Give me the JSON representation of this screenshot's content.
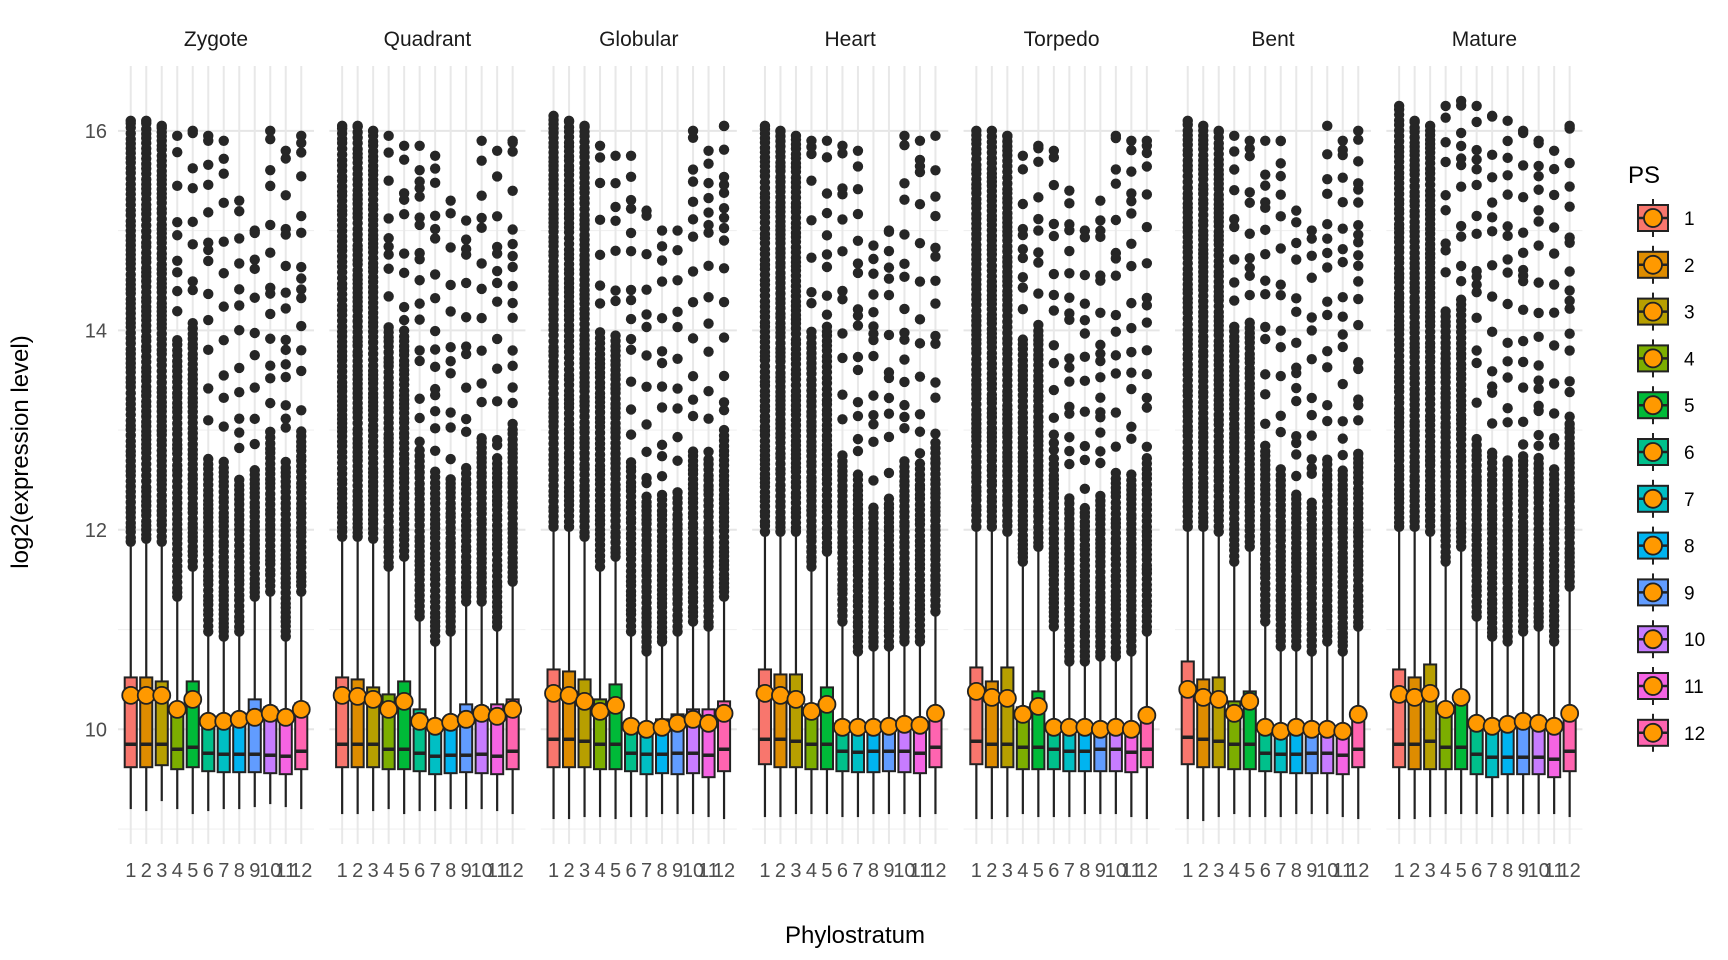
{
  "chart_data": {
    "type": "box",
    "xlabel": "Phylostratum",
    "ylabel": "log2(expression level)",
    "y_ticks": [
      10,
      12,
      14,
      16
    ],
    "ylim": [
      8.9,
      16.6
    ],
    "grid": true,
    "legend": {
      "title": "PS",
      "placement": "right"
    },
    "facets": [
      "Zygote",
      "Quadrant",
      "Globular",
      "Heart",
      "Torpedo",
      "Bent",
      "Mature"
    ],
    "categories": [
      "1",
      "2",
      "3",
      "4",
      "5",
      "6",
      "7",
      "8",
      "9",
      "10",
      "11",
      "12"
    ],
    "colors": [
      "#F8766D",
      "#DE8C00",
      "#B79F00",
      "#7CAE00",
      "#00BA38",
      "#00C08B",
      "#00BFC4",
      "#00B4F0",
      "#619CFF",
      "#C77CFF",
      "#F564E3",
      "#FF64B0"
    ],
    "mean_marker_color": "#FF9900",
    "series": [
      {
        "name": "Zygote",
        "q1": [
          9.62,
          9.62,
          9.64,
          9.6,
          9.62,
          9.58,
          9.57,
          9.57,
          9.57,
          9.56,
          9.55,
          9.6
        ],
        "median": [
          9.85,
          9.85,
          9.85,
          9.8,
          9.82,
          9.76,
          9.75,
          9.75,
          9.75,
          9.74,
          9.73,
          9.78
        ],
        "q3": [
          10.52,
          10.52,
          10.48,
          10.2,
          10.48,
          10.12,
          10.1,
          10.13,
          10.3,
          10.22,
          10.18,
          10.26
        ],
        "lower_whisker": [
          9.2,
          9.18,
          9.28,
          9.2,
          9.15,
          9.18,
          9.2,
          9.2,
          9.22,
          9.25,
          9.22,
          9.2
        ],
        "upper_whisker": [
          11.85,
          11.88,
          11.85,
          11.3,
          11.6,
          10.95,
          10.9,
          10.95,
          11.3,
          11.35,
          10.9,
          11.35
        ],
        "mean": [
          10.34,
          10.34,
          10.34,
          10.2,
          10.3,
          10.08,
          10.08,
          10.1,
          10.12,
          10.16,
          10.12,
          10.2
        ],
        "outlier_max": [
          16.1,
          16.1,
          16.05,
          15.95,
          16.0,
          15.95,
          15.9,
          15.3,
          15.0,
          16.0,
          15.8,
          15.95
        ]
      },
      {
        "name": "Quadrant",
        "q1": [
          9.62,
          9.62,
          9.62,
          9.6,
          9.6,
          9.58,
          9.55,
          9.56,
          9.57,
          9.56,
          9.55,
          9.6
        ],
        "median": [
          9.85,
          9.85,
          9.85,
          9.8,
          9.8,
          9.76,
          9.73,
          9.74,
          9.74,
          9.75,
          9.73,
          9.78
        ],
        "q3": [
          10.52,
          10.5,
          10.42,
          10.35,
          10.48,
          10.2,
          10.08,
          10.12,
          10.25,
          10.22,
          10.25,
          10.3
        ],
        "lower_whisker": [
          9.15,
          9.15,
          9.18,
          9.2,
          9.15,
          9.18,
          9.18,
          9.2,
          9.2,
          9.2,
          9.18,
          9.15
        ],
        "upper_whisker": [
          11.9,
          11.9,
          11.88,
          11.6,
          11.7,
          11.1,
          10.85,
          10.95,
          11.25,
          11.25,
          11.0,
          11.45
        ],
        "mean": [
          10.34,
          10.33,
          10.3,
          10.2,
          10.28,
          10.08,
          10.03,
          10.07,
          10.1,
          10.16,
          10.13,
          10.2
        ],
        "outlier_max": [
          16.05,
          16.05,
          16.0,
          15.95,
          15.85,
          15.85,
          15.75,
          15.3,
          15.1,
          15.9,
          15.8,
          15.9
        ]
      },
      {
        "name": "Globular",
        "q1": [
          9.62,
          9.62,
          9.62,
          9.6,
          9.6,
          9.58,
          9.55,
          9.56,
          9.55,
          9.56,
          9.52,
          9.58
        ],
        "median": [
          9.9,
          9.9,
          9.88,
          9.85,
          9.85,
          9.76,
          9.75,
          9.75,
          9.76,
          9.76,
          9.74,
          9.8
        ],
        "q3": [
          10.6,
          10.58,
          10.5,
          10.3,
          10.45,
          10.08,
          10.05,
          10.1,
          10.15,
          10.2,
          10.2,
          10.28
        ],
        "lower_whisker": [
          9.1,
          9.1,
          9.12,
          9.12,
          9.1,
          9.12,
          9.12,
          9.15,
          9.15,
          9.15,
          9.12,
          9.1
        ],
        "upper_whisker": [
          12.0,
          12.0,
          11.9,
          11.6,
          11.7,
          10.95,
          10.75,
          10.85,
          10.95,
          11.05,
          11.0,
          11.3
        ],
        "mean": [
          10.36,
          10.34,
          10.28,
          10.18,
          10.24,
          10.03,
          10.0,
          10.02,
          10.06,
          10.1,
          10.06,
          10.16
        ],
        "outlier_max": [
          16.15,
          16.1,
          16.05,
          15.85,
          15.75,
          15.75,
          15.2,
          15.0,
          15.0,
          16.0,
          15.8,
          16.05
        ]
      },
      {
        "name": "Heart",
        "q1": [
          9.65,
          9.62,
          9.62,
          9.6,
          9.6,
          9.58,
          9.57,
          9.57,
          9.58,
          9.57,
          9.56,
          9.62
        ],
        "median": [
          9.9,
          9.9,
          9.88,
          9.85,
          9.85,
          9.78,
          9.77,
          9.78,
          9.78,
          9.78,
          9.76,
          9.82
        ],
        "q3": [
          10.6,
          10.55,
          10.55,
          10.25,
          10.42,
          10.08,
          10.05,
          10.05,
          10.08,
          10.1,
          10.08,
          10.18
        ],
        "lower_whisker": [
          9.12,
          9.12,
          9.15,
          9.15,
          9.15,
          9.12,
          9.12,
          9.15,
          9.15,
          9.15,
          9.12,
          9.15
        ],
        "upper_whisker": [
          11.95,
          11.95,
          11.95,
          11.6,
          11.75,
          11.05,
          10.75,
          10.8,
          10.8,
          10.85,
          10.85,
          11.15
        ],
        "mean": [
          10.36,
          10.34,
          10.3,
          10.18,
          10.25,
          10.02,
          10.02,
          10.02,
          10.03,
          10.05,
          10.04,
          10.16
        ],
        "outlier_max": [
          16.05,
          16.0,
          15.95,
          15.9,
          15.9,
          15.85,
          15.8,
          14.85,
          15.0,
          15.95,
          15.9,
          15.95
        ]
      },
      {
        "name": "Torpedo",
        "q1": [
          9.65,
          9.62,
          9.62,
          9.6,
          9.6,
          9.6,
          9.58,
          9.58,
          9.58,
          9.58,
          9.57,
          9.62
        ],
        "median": [
          9.88,
          9.85,
          9.85,
          9.82,
          9.82,
          9.8,
          9.78,
          9.78,
          9.8,
          9.8,
          9.77,
          9.8
        ],
        "q3": [
          10.62,
          10.48,
          10.62,
          10.22,
          10.38,
          10.05,
          10.02,
          10.02,
          10.03,
          10.03,
          10.02,
          10.15
        ],
        "lower_whisker": [
          9.1,
          9.1,
          9.12,
          9.15,
          9.12,
          9.12,
          9.12,
          9.15,
          9.15,
          9.15,
          9.12,
          9.1
        ],
        "upper_whisker": [
          12.0,
          12.0,
          11.95,
          11.65,
          11.8,
          11.0,
          10.65,
          10.65,
          10.7,
          10.7,
          10.75,
          10.95
        ],
        "mean": [
          10.38,
          10.32,
          10.31,
          10.15,
          10.23,
          10.02,
          10.02,
          10.02,
          10.0,
          10.02,
          10.0,
          10.14
        ],
        "outlier_max": [
          16.0,
          16.0,
          15.95,
          15.75,
          15.85,
          15.8,
          15.4,
          15.0,
          15.3,
          15.95,
          15.9,
          15.9
        ]
      },
      {
        "name": "Bent",
        "q1": [
          9.65,
          9.62,
          9.62,
          9.6,
          9.6,
          9.58,
          9.57,
          9.56,
          9.56,
          9.56,
          9.55,
          9.62
        ],
        "median": [
          9.92,
          9.9,
          9.88,
          9.85,
          9.85,
          9.76,
          9.75,
          9.75,
          9.76,
          9.76,
          9.74,
          9.8
        ],
        "q3": [
          10.68,
          10.5,
          10.52,
          10.28,
          10.38,
          10.05,
          10.02,
          10.05,
          10.05,
          10.05,
          10.02,
          10.15
        ],
        "lower_whisker": [
          9.1,
          9.08,
          9.12,
          9.15,
          9.12,
          9.12,
          9.12,
          9.15,
          9.15,
          9.15,
          9.12,
          9.1
        ],
        "upper_whisker": [
          12.0,
          12.0,
          11.95,
          11.65,
          11.8,
          11.05,
          10.8,
          10.8,
          10.75,
          10.85,
          10.75,
          11.0
        ],
        "mean": [
          10.4,
          10.32,
          10.3,
          10.16,
          10.28,
          10.02,
          9.98,
          10.02,
          10.0,
          10.0,
          9.98,
          10.15
        ],
        "outlier_max": [
          16.1,
          16.05,
          16.0,
          15.95,
          15.9,
          15.9,
          15.9,
          15.2,
          15.0,
          16.05,
          15.9,
          16.0
        ]
      },
      {
        "name": "Mature",
        "q1": [
          9.62,
          9.6,
          9.6,
          9.6,
          9.6,
          9.55,
          9.52,
          9.55,
          9.55,
          9.55,
          9.52,
          9.58
        ],
        "median": [
          9.85,
          9.85,
          9.88,
          9.82,
          9.82,
          9.75,
          9.72,
          9.72,
          9.72,
          9.72,
          9.7,
          9.78
        ],
        "q3": [
          10.6,
          10.52,
          10.65,
          10.25,
          10.35,
          10.1,
          10.08,
          10.05,
          10.1,
          10.05,
          10.0,
          10.18
        ],
        "lower_whisker": [
          9.1,
          9.1,
          9.12,
          9.15,
          9.15,
          9.15,
          9.12,
          9.15,
          9.15,
          9.15,
          9.15,
          9.12
        ],
        "upper_whisker": [
          12.0,
          12.0,
          11.95,
          11.65,
          11.8,
          11.1,
          10.9,
          10.85,
          10.95,
          11.0,
          10.85,
          11.4
        ],
        "mean": [
          10.35,
          10.32,
          10.36,
          10.2,
          10.32,
          10.06,
          10.03,
          10.05,
          10.08,
          10.06,
          10.03,
          10.16
        ],
        "outlier_max": [
          16.25,
          16.1,
          16.05,
          16.25,
          16.3,
          16.25,
          16.15,
          16.1,
          16.0,
          15.9,
          15.8,
          16.05
        ]
      }
    ]
  }
}
